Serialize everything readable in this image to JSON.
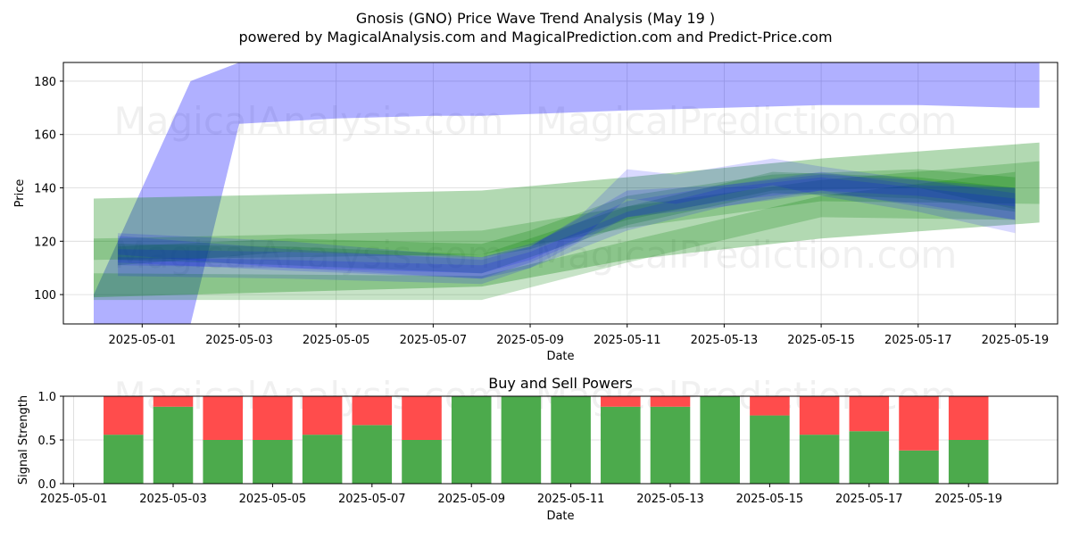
{
  "title": {
    "line1": "Gnosis (GNO) Price Wave Trend Analysis (May 19 )",
    "line2": "powered by MagicalAnalysis.com and MagicalPrediction.com and Predict-Price.com"
  },
  "watermarks": [
    "MagicalAnalysis.com",
    "MagicalPrediction.com"
  ],
  "chart_data": [
    {
      "type": "area",
      "title": "",
      "xlabel": "Date",
      "ylabel": "Price",
      "xlim": [
        "2025-04-29T09:00",
        "2025-05-19T21:00"
      ],
      "ylim": [
        89,
        187
      ],
      "x_ticks": [
        "2025-05-01",
        "2025-05-03",
        "2025-05-05",
        "2025-05-07",
        "2025-05-09",
        "2025-05-11",
        "2025-05-13",
        "2025-05-15",
        "2025-05-17",
        "2025-05-19"
      ],
      "y_ticks": [
        100,
        120,
        140,
        160,
        180
      ],
      "grid": true,
      "colors": {
        "blue_band": "#0000ff",
        "green_band": "#008000"
      },
      "series": [
        {
          "color": "blue",
          "kind": "band",
          "x": [
            "2025-04-30",
            "2025-05-01",
            "2025-05-02",
            "2025-05-03",
            "2025-05-04",
            "2025-05-05",
            "2025-05-07",
            "2025-05-08",
            "2025-05-11",
            "2025-05-15",
            "2025-05-17",
            "2025-05-19",
            "2025-05-19T12:00"
          ],
          "upper": [
            100,
            140,
            180,
            187,
            187,
            187,
            187,
            187,
            187,
            187,
            187,
            187,
            187
          ],
          "lower": [
            89,
            89,
            89,
            164,
            165,
            166,
            167,
            167,
            169,
            171,
            171,
            170,
            170
          ]
        },
        {
          "color": "green",
          "kind": "band",
          "x": [
            "2025-04-30",
            "2025-05-08",
            "2025-05-11",
            "2025-05-15",
            "2025-05-19T12:00"
          ],
          "upper": [
            136,
            139,
            144,
            151,
            157
          ],
          "lower": [
            99,
            103,
            113,
            121,
            127
          ]
        },
        {
          "color": "green",
          "kind": "band",
          "x": [
            "2025-04-30",
            "2025-05-08",
            "2025-05-11",
            "2025-05-15",
            "2025-05-19T12:00"
          ],
          "upper": [
            121,
            124,
            133,
            143,
            150
          ],
          "lower": [
            113,
            115,
            125,
            135,
            134
          ]
        },
        {
          "color": "green",
          "kind": "band",
          "x": [
            "2025-04-30",
            "2025-05-08",
            "2025-05-11",
            "2025-05-15",
            "2025-05-19"
          ],
          "upper": [
            108,
            107,
            120,
            137,
            146
          ],
          "lower": [
            98,
            98,
            112,
            129,
            128
          ]
        },
        {
          "color": "green",
          "kind": "band",
          "x": [
            "2025-04-30T12:00",
            "2025-05-04",
            "2025-05-08",
            "2025-05-09",
            "2025-05-11",
            "2025-05-14",
            "2025-05-17",
            "2025-05-19"
          ],
          "upper": [
            118,
            121,
            119,
            124,
            137,
            145,
            147,
            144
          ],
          "lower": [
            111,
            116,
            114,
            117,
            128,
            139,
            140,
            132
          ]
        },
        {
          "color": "green",
          "kind": "band",
          "x": [
            "2025-04-30T12:00",
            "2025-05-04",
            "2025-05-08",
            "2025-05-09",
            "2025-05-11",
            "2025-05-14",
            "2025-05-17",
            "2025-05-19"
          ],
          "upper": [
            119,
            118,
            115,
            121,
            133,
            146,
            144,
            140
          ],
          "lower": [
            113,
            111,
            108,
            114,
            126,
            138,
            136,
            131
          ]
        },
        {
          "color": "blue",
          "kind": "band",
          "x": [
            "2025-04-30T12:00",
            "2025-05-04",
            "2025-05-08",
            "2025-05-09",
            "2025-05-10",
            "2025-05-11",
            "2025-05-12",
            "2025-05-14",
            "2025-05-15",
            "2025-05-17",
            "2025-05-19"
          ],
          "upper": [
            123,
            120,
            114,
            118,
            129,
            147,
            145,
            151,
            148,
            143,
            138
          ],
          "lower": [
            112,
            109,
            106,
            112,
            120,
            136,
            134,
            141,
            137,
            131,
            123
          ]
        },
        {
          "color": "blue",
          "kind": "band",
          "x": [
            "2025-04-30T12:00",
            "2025-05-04",
            "2025-05-08",
            "2025-05-09",
            "2025-05-11",
            "2025-05-13",
            "2025-05-15",
            "2025-05-17",
            "2025-05-19"
          ],
          "upper": [
            122,
            117,
            113,
            118,
            139,
            141,
            146,
            141,
            140
          ],
          "lower": [
            115,
            110,
            106,
            110,
            129,
            133,
            139,
            133,
            128
          ]
        },
        {
          "color": "blue",
          "kind": "band",
          "x": [
            "2025-04-30T12:00",
            "2025-05-04",
            "2025-05-08",
            "2025-05-09",
            "2025-05-11",
            "2025-05-13",
            "2025-05-15",
            "2025-05-17",
            "2025-05-19"
          ],
          "upper": [
            114,
            113,
            111,
            116,
            131,
            140,
            144,
            140,
            136
          ],
          "lower": [
            107,
            106,
            104,
            110,
            124,
            133,
            138,
            134,
            128
          ]
        },
        {
          "color": "blue",
          "kind": "band",
          "x": [
            "2025-04-30T12:00",
            "2025-05-04",
            "2025-05-08",
            "2025-05-09",
            "2025-05-11",
            "2025-05-13",
            "2025-05-15",
            "2025-05-17",
            "2025-05-19"
          ],
          "upper": [
            117,
            116,
            114,
            119,
            135,
            141,
            145,
            143,
            140
          ],
          "lower": [
            111,
            110,
            108,
            113,
            129,
            135,
            139,
            137,
            133
          ]
        }
      ]
    },
    {
      "type": "bar",
      "title": "Buy and Sell Powers",
      "xlabel": "Date",
      "ylabel": "Signal Strength",
      "xlim": [
        "2025-04-30T19:00",
        "2025-05-20T19:00"
      ],
      "ylim": [
        0,
        1.0
      ],
      "x_ticks": [
        "2025-05-01",
        "2025-05-03",
        "2025-05-05",
        "2025-05-07",
        "2025-05-09",
        "2025-05-11",
        "2025-05-13",
        "2025-05-15",
        "2025-05-17",
        "2025-05-19"
      ],
      "y_ticks": [
        0.0,
        0.5,
        1.0
      ],
      "y_tick_labels": [
        "0.0",
        "0.5",
        "1.0"
      ],
      "grid": true,
      "colors": {
        "buy": "#4caa4c",
        "sell": "#ff4c4c"
      },
      "categories": [
        "2025-05-02",
        "2025-05-03",
        "2025-05-04",
        "2025-05-05",
        "2025-05-06",
        "2025-05-07",
        "2025-05-08",
        "2025-05-09",
        "2025-05-10",
        "2025-05-11",
        "2025-05-12",
        "2025-05-13",
        "2025-05-14",
        "2025-05-15",
        "2025-05-16",
        "2025-05-17",
        "2025-05-18",
        "2025-05-19"
      ],
      "series": [
        {
          "values": [
            0.56,
            0.88,
            0.5,
            0.5,
            0.56,
            0.67,
            0.5,
            1.0,
            1.0,
            1.0,
            0.88,
            0.88,
            1.0,
            0.78,
            0.56,
            0.6,
            0.38,
            0.5
          ]
        },
        {
          "values": [
            0.44,
            0.12,
            0.5,
            0.5,
            0.44,
            0.33,
            0.5,
            0.0,
            0.0,
            0.0,
            0.12,
            0.12,
            0.0,
            0.22,
            0.44,
            0.4,
            0.62,
            0.5
          ]
        }
      ]
    }
  ]
}
